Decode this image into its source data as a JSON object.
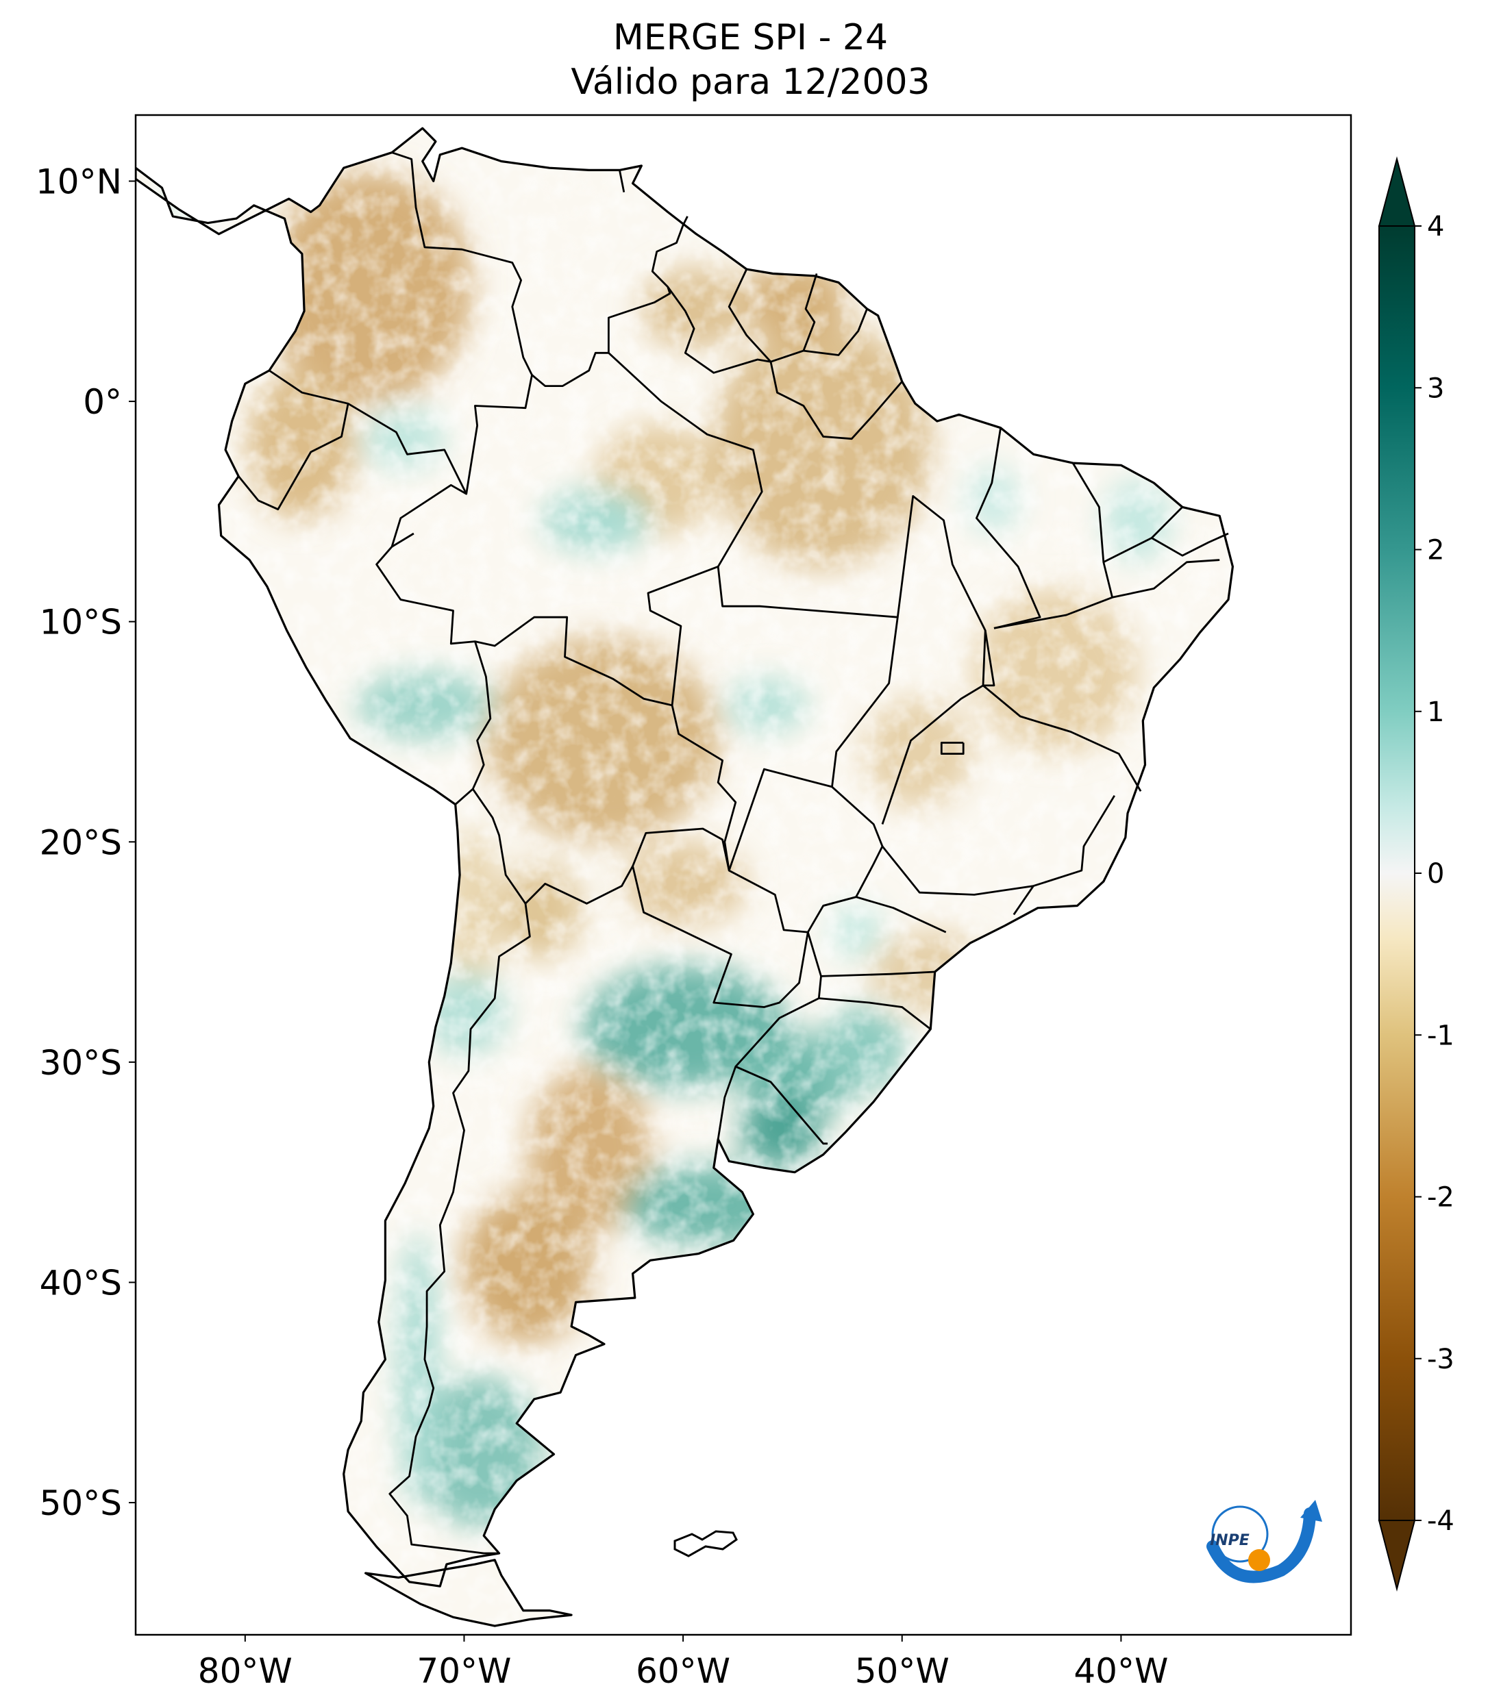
{
  "title": {
    "line1": "MERGE   SPI - 24",
    "line2": "Válido para 12/2003"
  },
  "map": {
    "region": "South America",
    "longitude_range": [
      -85,
      -29.5
    ],
    "latitude_range": [
      -56,
      13
    ],
    "lon_ticks": [
      {
        "value": -80,
        "label": "80°W"
      },
      {
        "value": -70,
        "label": "70°W"
      },
      {
        "value": -60,
        "label": "60°W"
      },
      {
        "value": -50,
        "label": "50°W"
      },
      {
        "value": -40,
        "label": "40°W"
      }
    ],
    "lat_ticks": [
      {
        "value": 10,
        "label": "10°N"
      },
      {
        "value": 0,
        "label": "0°"
      },
      {
        "value": -10,
        "label": "10°S"
      },
      {
        "value": -20,
        "label": "20°S"
      },
      {
        "value": -30,
        "label": "30°S"
      },
      {
        "value": -40,
        "label": "40°S"
      },
      {
        "value": -50,
        "label": "50°S"
      }
    ]
  },
  "colorbar": {
    "min": -4,
    "max": 4,
    "extend": "both",
    "colormap": "BrBG",
    "ticks": [
      {
        "value": 4,
        "label": "4"
      },
      {
        "value": 3,
        "label": "3"
      },
      {
        "value": 2,
        "label": "2"
      },
      {
        "value": 1,
        "label": "1"
      },
      {
        "value": 0,
        "label": "0"
      },
      {
        "value": -1,
        "label": "-1"
      },
      {
        "value": -2,
        "label": "-2"
      },
      {
        "value": -3,
        "label": "-3"
      },
      {
        "value": -4,
        "label": "-4"
      }
    ]
  },
  "logo": {
    "text": "INPE",
    "colors": {
      "arrow": "#1a73c9",
      "dot": "#f39200"
    }
  },
  "colors": {
    "dry_strong": "#b07a2e",
    "dry_light": "#e6cfa0",
    "neutral": "#ffffff",
    "wet_light": "#c7ebe5",
    "wet_strong": "#4fa596"
  }
}
